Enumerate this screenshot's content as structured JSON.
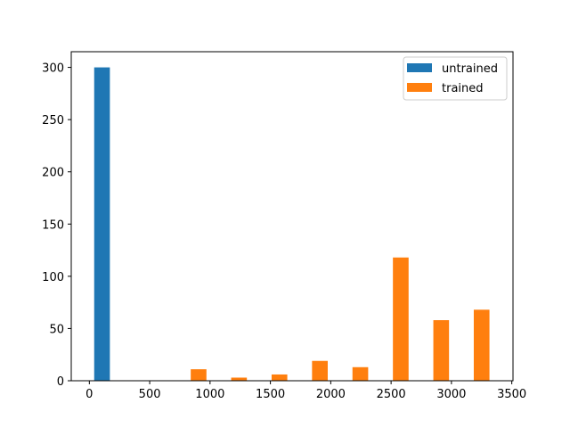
{
  "chart_data": {
    "type": "bar",
    "title": "",
    "xlabel": "",
    "ylabel": "",
    "xlim": [
      -150,
      3510
    ],
    "ylim": [
      0,
      315
    ],
    "x_ticks": [
      0,
      500,
      1000,
      1500,
      2000,
      2500,
      3000,
      3500
    ],
    "y_ticks": [
      0,
      50,
      100,
      150,
      200,
      250,
      300
    ],
    "grid": false,
    "legend_position": "top-right",
    "series": [
      {
        "name": "untrained",
        "color": "#1f77b4",
        "bars": [
          {
            "x_start": 40,
            "x_end": 170,
            "value": 300
          }
        ]
      },
      {
        "name": "trained",
        "color": "#ff7f0e",
        "bars": [
          {
            "x_start": 840,
            "x_end": 970,
            "value": 11
          },
          {
            "x_start": 1175,
            "x_end": 1305,
            "value": 3
          },
          {
            "x_start": 1510,
            "x_end": 1640,
            "value": 6
          },
          {
            "x_start": 1845,
            "x_end": 1975,
            "value": 19
          },
          {
            "x_start": 2180,
            "x_end": 2310,
            "value": 13
          },
          {
            "x_start": 2515,
            "x_end": 2645,
            "value": 118
          },
          {
            "x_start": 2850,
            "x_end": 2980,
            "value": 58
          },
          {
            "x_start": 3185,
            "x_end": 3315,
            "value": 68
          }
        ]
      }
    ]
  }
}
